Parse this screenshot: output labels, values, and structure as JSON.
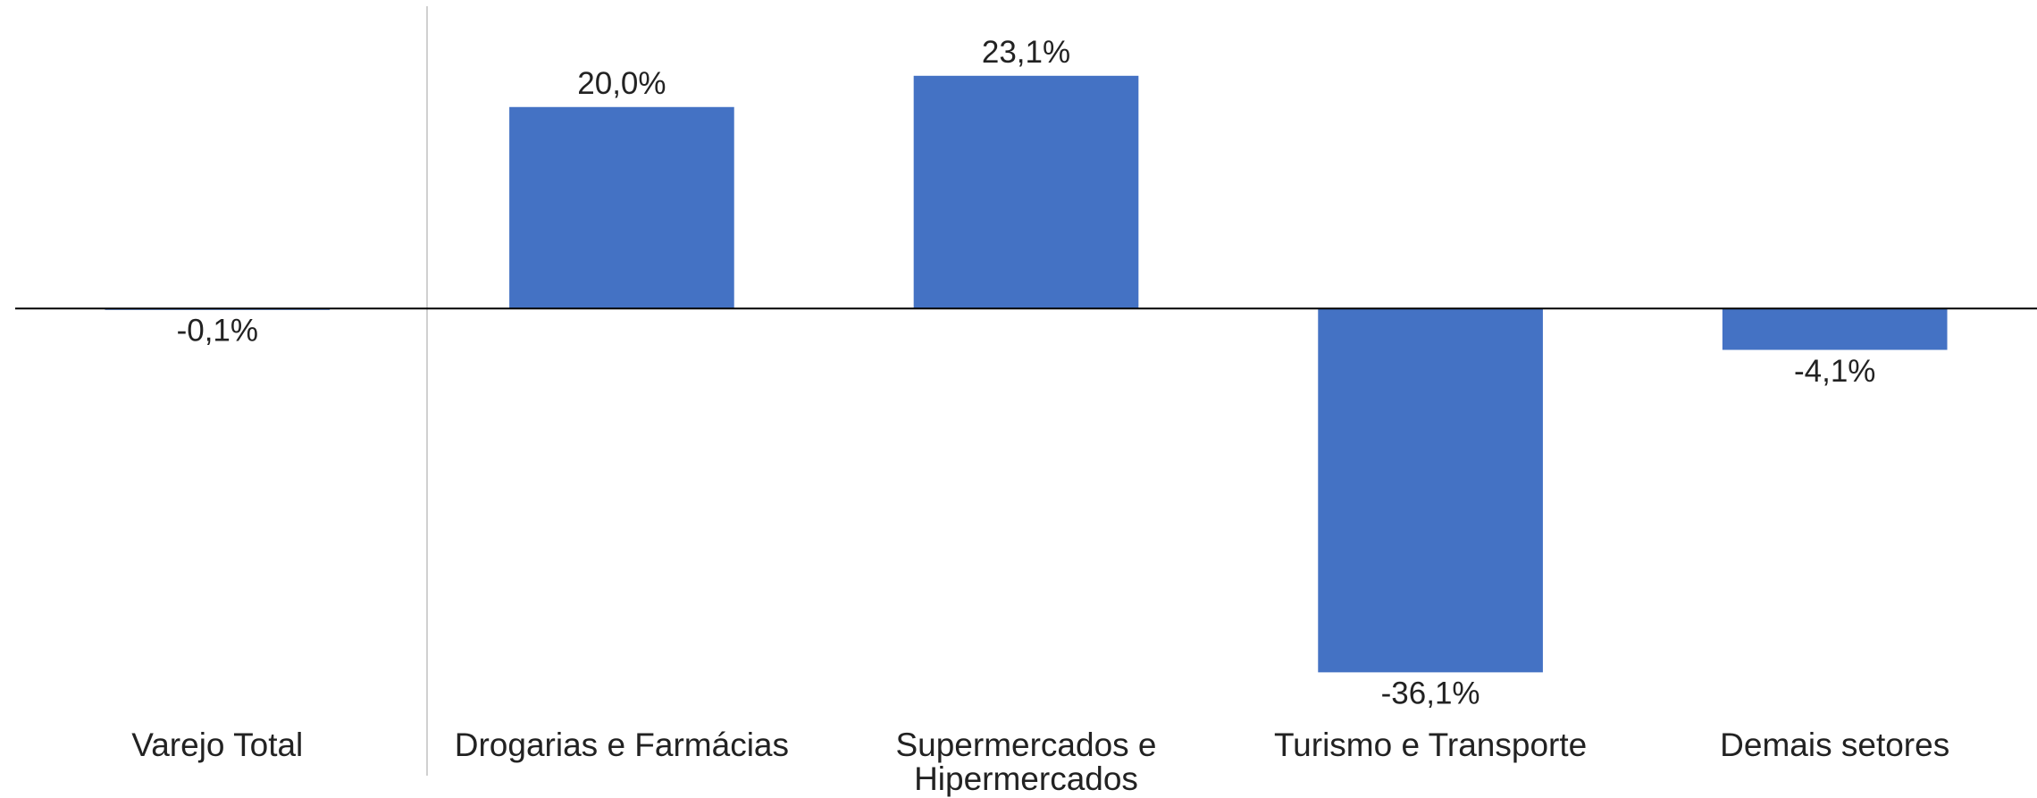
{
  "chart_data": {
    "type": "bar",
    "categories": [
      "Varejo Total",
      "Drogarias e Farmácias",
      "Supermercados e Hipermercados",
      "Turismo e Transporte",
      "Demais setores"
    ],
    "values": [
      -0.1,
      20.0,
      23.1,
      -36.1,
      -4.1
    ],
    "value_labels": [
      "-0,1%",
      "20,0%",
      "23,1%",
      "-36,1%",
      "-4,1%"
    ],
    "color": "#4472c4",
    "ylim": [
      -46,
      30
    ]
  }
}
